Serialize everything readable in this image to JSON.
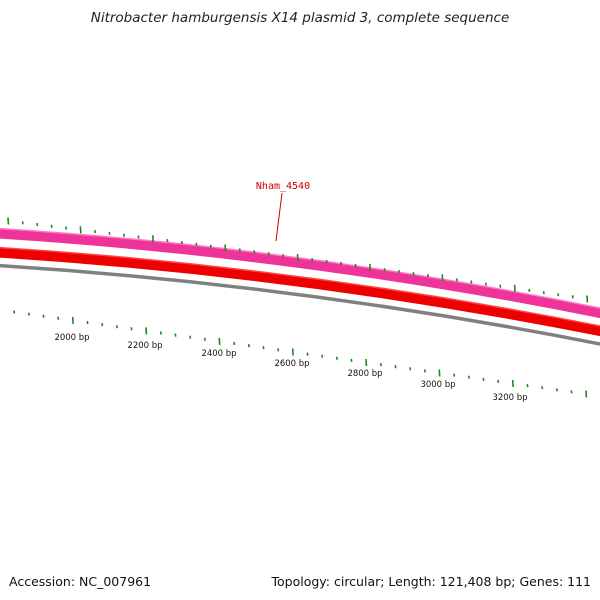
{
  "title": "Nitrobacter hamburgensis X14 plasmid 3, complete sequence",
  "footer": {
    "accession": "Accession: NC_007961",
    "summary": "Topology: circular; Length: 121,408 bp; Genes: 111"
  },
  "gene_label": {
    "text": "Nham_4540",
    "color": "#cc0000"
  },
  "scale_labels": [
    "2000 bp",
    "2200 bp",
    "2400 bp",
    "2600 bp",
    "2800 bp",
    "3000 bp",
    "3200 bp"
  ],
  "colors": {
    "pink_track": "#ee3399",
    "red_track": "#ee0000",
    "backbone": "#808080",
    "ticks": "#1a8a1a"
  }
}
